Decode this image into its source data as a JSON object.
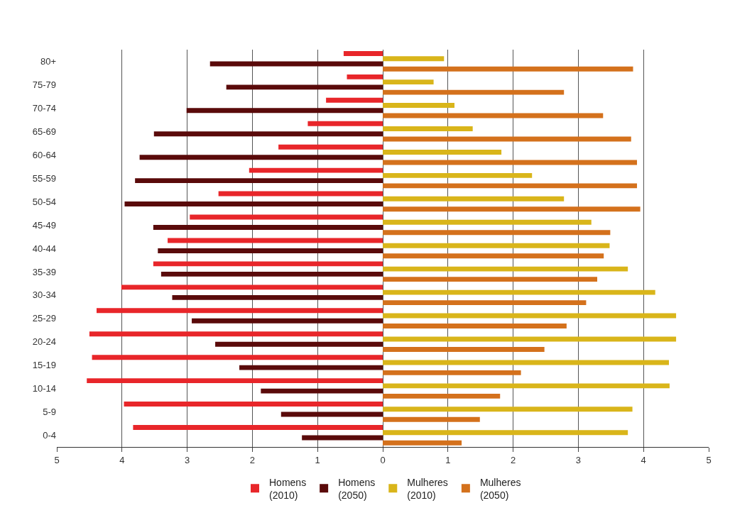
{
  "chart_data": {
    "type": "bar",
    "orientation": "horizontal",
    "categories": [
      "80+",
      "75-79",
      "70-74",
      "65-69",
      "60-64",
      "55-59",
      "50-54",
      "45-49",
      "40-44",
      "35-39",
      "30-34",
      "25-29",
      "20-24",
      "15-19",
      "10-14",
      "5-9",
      "0-4"
    ],
    "series": [
      {
        "name": "Homens (2010)",
        "color": "#e8262a",
        "values": [
          -0.6,
          -0.55,
          -0.87,
          -1.15,
          -1.6,
          -2.05,
          -2.52,
          -2.96,
          -3.3,
          -3.52,
          -4.01,
          -4.39,
          -4.5,
          -4.46,
          -4.54,
          -3.97,
          -3.83
        ]
      },
      {
        "name": "Homens (2050)",
        "color": "#5a0a0a",
        "values": [
          -2.65,
          -2.4,
          -3.01,
          -3.51,
          -3.73,
          -3.8,
          -3.96,
          -3.52,
          -3.45,
          -3.4,
          -3.23,
          -2.93,
          -2.57,
          -2.2,
          -1.87,
          -1.56,
          -1.24
        ]
      },
      {
        "name": "Mulheres (2010)",
        "color": "#d9b51a",
        "values": [
          0.94,
          0.78,
          1.1,
          1.38,
          1.82,
          2.29,
          2.78,
          3.2,
          3.48,
          3.76,
          4.18,
          4.5,
          4.5,
          4.39,
          4.4,
          3.83,
          3.76
        ]
      },
      {
        "name": "Mulheres (2050)",
        "color": "#d4711c",
        "values": [
          3.84,
          2.78,
          3.38,
          3.81,
          3.9,
          3.9,
          3.95,
          3.49,
          3.39,
          3.29,
          3.12,
          2.82,
          2.48,
          2.12,
          1.8,
          1.49,
          1.21
        ]
      }
    ],
    "xlim": [
      -5,
      5
    ],
    "xticks": [
      {
        "value": -5,
        "label": "5"
      },
      {
        "value": -4,
        "label": "4"
      },
      {
        "value": -3,
        "label": "3"
      },
      {
        "value": -2,
        "label": "2"
      },
      {
        "value": -1,
        "label": "1"
      },
      0,
      1,
      2,
      3,
      4,
      5
    ],
    "grid": "x",
    "legend": "bottom"
  }
}
